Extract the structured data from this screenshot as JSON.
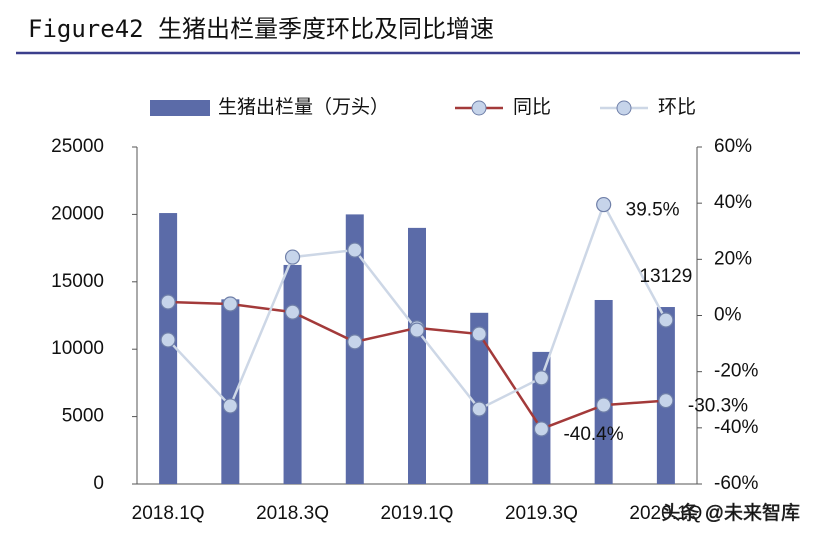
{
  "chart_data": {
    "type": "bar",
    "title": "Figure42 生猪出栏量季度环比及同比增速",
    "categories": [
      "2018.1Q",
      null,
      "2018.3Q",
      null,
      "2019.1Q",
      null,
      "2019.3Q",
      null,
      "2020.1Q"
    ],
    "series": [
      {
        "name": "生猪出栏量（万头）",
        "type": "bar",
        "color": "#5b6ba8",
        "values": [
          20100,
          13700,
          16250,
          20000,
          19000,
          12700,
          9800,
          13650,
          13129
        ],
        "value_labels": [
          null,
          null,
          null,
          null,
          null,
          null,
          null,
          null,
          "13129"
        ]
      },
      {
        "name": "同比",
        "type": "line",
        "axis": "y2",
        "color": "#a33a3a",
        "values": [
          4.8,
          4.1,
          1.2,
          -9.4,
          -4.4,
          -6.6,
          -40.4,
          -31.9,
          -30.3
        ],
        "value_labels": [
          null,
          null,
          null,
          null,
          null,
          null,
          "-40.4%",
          null,
          "-30.3%"
        ]
      },
      {
        "name": "环比",
        "type": "line",
        "axis": "y2",
        "color": "#cdd7e6",
        "values": [
          -8.7,
          -32.2,
          20.8,
          23.3,
          -5.2,
          -33.3,
          -22.2,
          39.5,
          -1.6
        ],
        "value_labels": [
          null,
          null,
          null,
          null,
          null,
          null,
          null,
          "39.5%",
          null
        ]
      }
    ],
    "ylim": [
      0,
      25000
    ],
    "yticks": [
      0,
      5000,
      10000,
      15000,
      20000,
      25000
    ],
    "y2lim": [
      -60,
      60
    ],
    "y2ticks": [
      {
        "value": -60,
        "label": "-60%"
      },
      {
        "value": -40,
        "label": "-40%"
      },
      {
        "value": -20,
        "label": "-20%"
      },
      {
        "value": 0,
        "label": "0%"
      },
      {
        "value": 20,
        "label": "20%"
      },
      {
        "value": 40,
        "label": "40%"
      },
      {
        "value": 60,
        "label": "60%"
      }
    ],
    "marker_color": "#c6d4ea",
    "watermark": "头条 @未来智库"
  }
}
